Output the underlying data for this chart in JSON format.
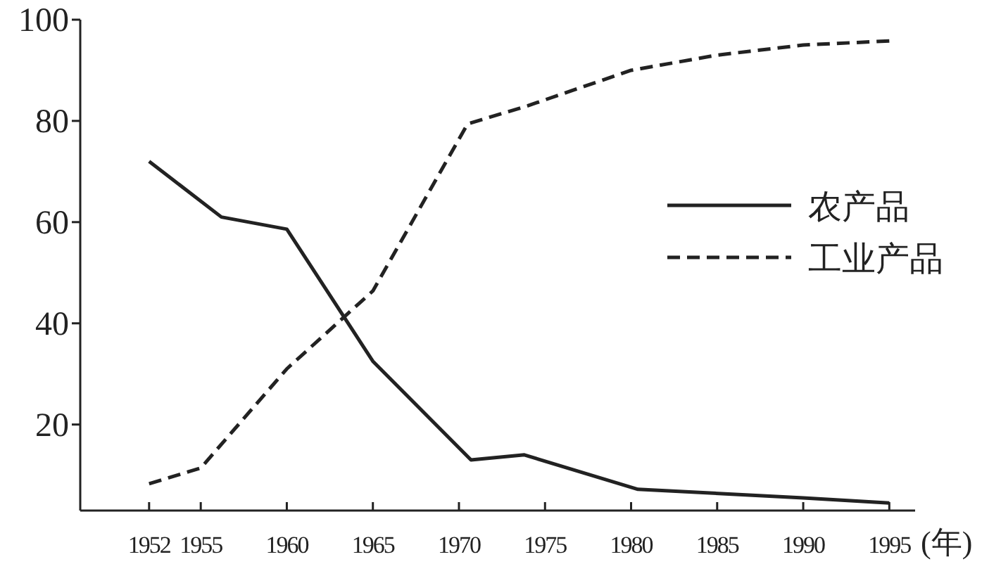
{
  "chart_data": {
    "type": "line",
    "xlabel": "(年)",
    "series": [
      {
        "name": "农产品",
        "color": "#222222",
        "line_style": "solid",
        "x": [
          1952,
          1956.2,
          1960,
          1965,
          1970.7,
          1973.8,
          1980.4,
          1990,
          1995
        ],
        "values": [
          72,
          61,
          58.6,
          32.5,
          13,
          14,
          7.2,
          5.5,
          4.5
        ]
      },
      {
        "name": "工业产品",
        "color": "#222222",
        "line_style": "dashed",
        "x": [
          1952,
          1955,
          1960,
          1965,
          1970.5,
          1974,
          1980,
          1985,
          1990,
          1995
        ],
        "values": [
          8.3,
          11.4,
          31,
          46.4,
          79.4,
          83,
          90,
          93,
          95,
          95.8
        ]
      }
    ],
    "xlim": [
      1948,
      1996.5
    ],
    "ylim": [
      3,
      100
    ],
    "xticks": [
      1952,
      1955,
      1960,
      1965,
      1970,
      1975,
      1980,
      1985,
      1990,
      1995
    ],
    "yticks": [
      20,
      40,
      60,
      80,
      100
    ],
    "legend": "right",
    "grid": false
  }
}
